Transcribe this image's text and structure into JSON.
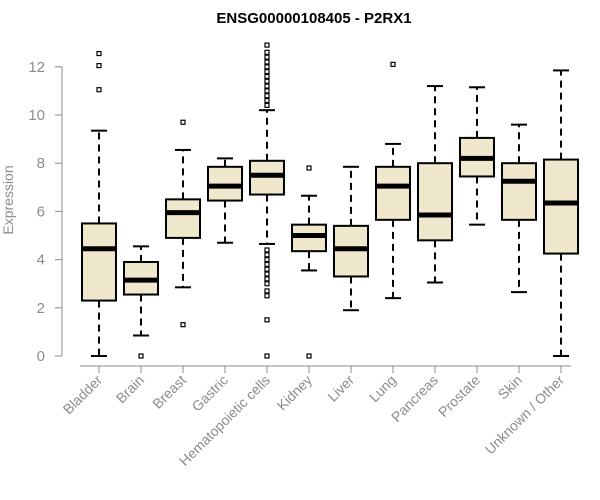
{
  "chart_data": {
    "type": "box",
    "title": "ENSG00000108405 - P2RX1",
    "ylabel": "Expression",
    "xlabel": "",
    "ylim": [
      0,
      13
    ],
    "yticks": [
      0,
      2,
      4,
      6,
      8,
      10,
      12
    ],
    "grid": false,
    "colors": {
      "box_fill": "#efe8cc",
      "stroke": "#000000",
      "axis": "#8c8c8c"
    },
    "categories": [
      "Bladder",
      "Brain",
      "Breast",
      "Gastric",
      "Hematopoietic cells",
      "Kidney",
      "Liver",
      "Lung",
      "Pancreas",
      "Prostate",
      "Skin",
      "Unknown / Other"
    ],
    "boxes": [
      {
        "min": 0.0,
        "q1": 2.3,
        "median": 4.45,
        "q3": 5.5,
        "max": 9.35,
        "outliers": [
          11.05,
          12.05,
          12.55
        ]
      },
      {
        "min": 0.85,
        "q1": 2.55,
        "median": 3.15,
        "q3": 3.9,
        "max": 4.55,
        "outliers": [
          0.0
        ]
      },
      {
        "min": 2.85,
        "q1": 4.9,
        "median": 5.95,
        "q3": 6.5,
        "max": 8.55,
        "outliers": [
          1.3,
          9.7
        ]
      },
      {
        "min": 4.7,
        "q1": 6.45,
        "median": 7.05,
        "q3": 7.85,
        "max": 8.2,
        "outliers": []
      },
      {
        "min": 4.65,
        "q1": 6.7,
        "median": 7.5,
        "q3": 8.1,
        "max": 10.2,
        "outliers": [
          0.0,
          1.5,
          2.5,
          2.7,
          3.0,
          3.2,
          3.4,
          3.6,
          3.8,
          4.0,
          4.2,
          4.4,
          10.4,
          10.6,
          10.8,
          11.0,
          11.2,
          11.4,
          11.6,
          11.8,
          12.0,
          12.2,
          12.4,
          12.6,
          12.9
        ]
      },
      {
        "min": 3.55,
        "q1": 4.35,
        "median": 5.0,
        "q3": 5.45,
        "max": 6.65,
        "outliers": [
          0.0,
          7.8
        ]
      },
      {
        "min": 1.9,
        "q1": 3.3,
        "median": 4.45,
        "q3": 5.4,
        "max": 7.85,
        "outliers": []
      },
      {
        "min": 2.4,
        "q1": 5.65,
        "median": 7.05,
        "q3": 7.85,
        "max": 8.8,
        "outliers": [
          12.1
        ]
      },
      {
        "min": 3.05,
        "q1": 4.8,
        "median": 5.85,
        "q3": 8.0,
        "max": 11.2,
        "outliers": []
      },
      {
        "min": 5.45,
        "q1": 7.45,
        "median": 8.2,
        "q3": 9.05,
        "max": 11.15,
        "outliers": []
      },
      {
        "min": 2.65,
        "q1": 5.65,
        "median": 7.25,
        "q3": 8.0,
        "max": 9.6,
        "outliers": []
      },
      {
        "min": 0.0,
        "q1": 4.25,
        "median": 6.35,
        "q3": 8.15,
        "max": 11.85,
        "outliers": []
      }
    ]
  }
}
